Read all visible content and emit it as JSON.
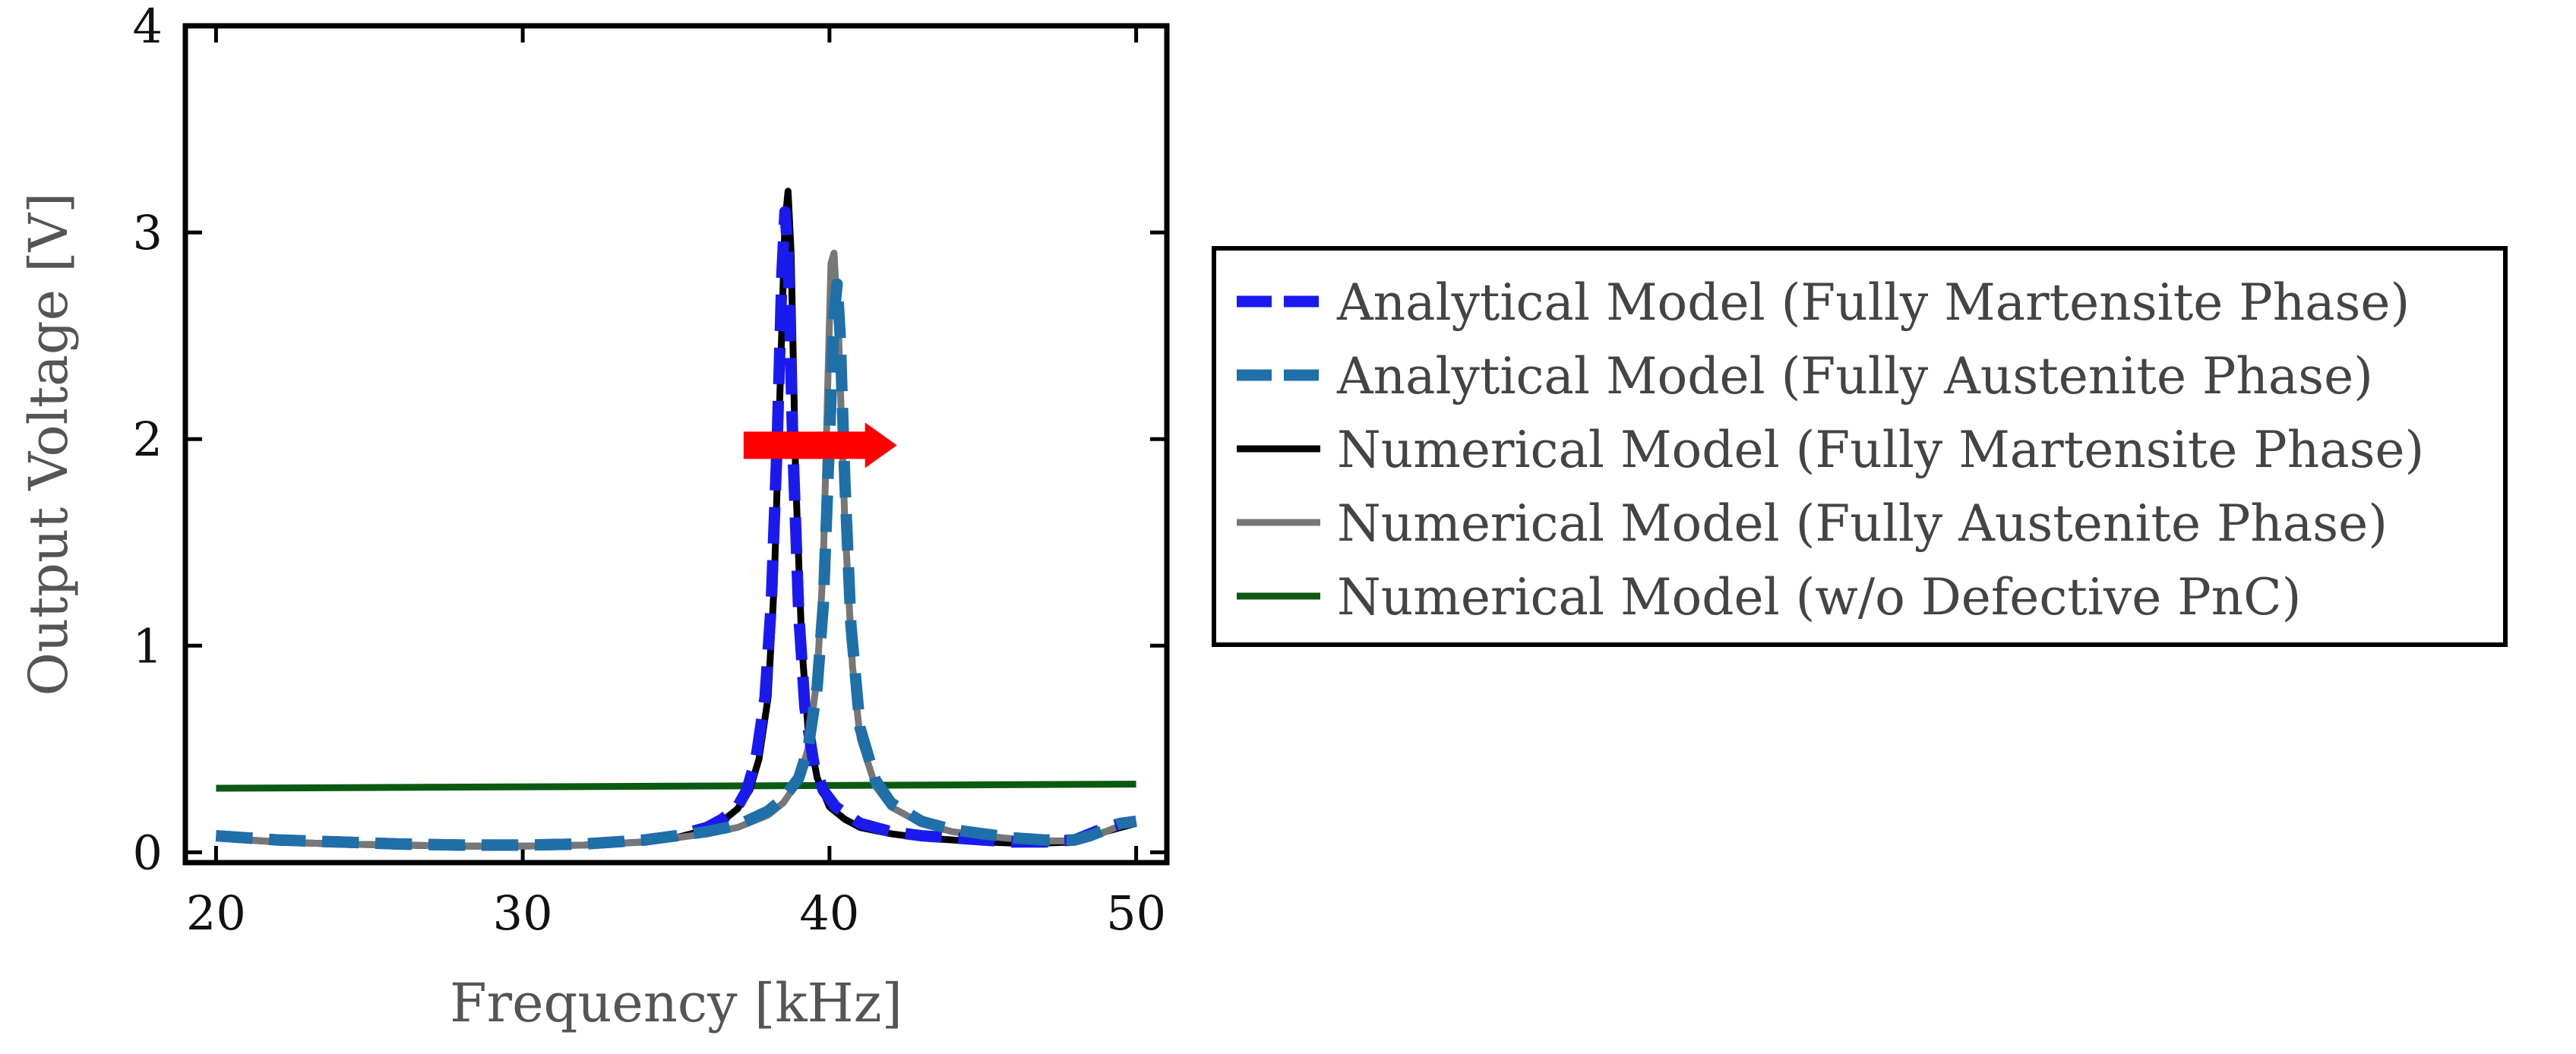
{
  "chart_data": {
    "type": "line",
    "title": "",
    "xlabel": "Frequency [kHz]",
    "ylabel": "Output Voltage [V]",
    "xlim": [
      19,
      51
    ],
    "ylim": [
      -0.05,
      4
    ],
    "xticks": [
      20,
      30,
      40,
      50
    ],
    "yticks": [
      0,
      1,
      2,
      3,
      4
    ],
    "x_tick_labels": [
      "20",
      "30",
      "40",
      "50"
    ],
    "y_tick_labels": [
      "0",
      "1",
      "2",
      "3",
      "4"
    ],
    "grid": false,
    "legend_position": "right",
    "annotations": [
      {
        "type": "arrow",
        "color": "#ff0000",
        "direction": "right",
        "x_from": 37.2,
        "x_to": 42.2,
        "y": 1.97
      }
    ],
    "series": [
      {
        "name": "Analytical Model (Fully Martensite Phase)",
        "color": "#1a1aee",
        "style": "dashed",
        "x": [
          20,
          22,
          24,
          26,
          28,
          30,
          32,
          34,
          35,
          36,
          36.5,
          37,
          37.3,
          37.6,
          37.9,
          38.1,
          38.3,
          38.45,
          38.55,
          38.65,
          38.8,
          39,
          39.2,
          39.5,
          39.8,
          40.2,
          41,
          42,
          43,
          44,
          45,
          46,
          47,
          48,
          48.5,
          49,
          49.5,
          50
        ],
        "values": [
          0.08,
          0.06,
          0.05,
          0.04,
          0.035,
          0.035,
          0.04,
          0.06,
          0.08,
          0.12,
          0.16,
          0.22,
          0.3,
          0.45,
          0.75,
          1.2,
          2.0,
          2.8,
          3.1,
          2.9,
          2.0,
          1.15,
          0.7,
          0.42,
          0.3,
          0.22,
          0.14,
          0.1,
          0.08,
          0.07,
          0.06,
          0.05,
          0.05,
          0.06,
          0.09,
          0.12,
          0.14,
          0.15
        ]
      },
      {
        "name": "Analytical Model (Fully Austenite Phase)",
        "color": "#1f6fa8",
        "style": "dashed",
        "x": [
          20,
          22,
          24,
          26,
          28,
          30,
          32,
          34,
          36,
          37,
          38,
          38.5,
          39,
          39.3,
          39.6,
          39.8,
          40.0,
          40.15,
          40.25,
          40.35,
          40.5,
          40.7,
          41,
          41.5,
          42,
          43,
          44,
          45,
          46,
          47,
          48,
          48.5,
          49,
          49.5,
          50
        ],
        "values": [
          0.08,
          0.06,
          0.05,
          0.04,
          0.035,
          0.035,
          0.04,
          0.06,
          0.1,
          0.13,
          0.2,
          0.26,
          0.36,
          0.5,
          0.8,
          1.2,
          2.0,
          2.6,
          2.75,
          2.5,
          1.8,
          1.1,
          0.6,
          0.35,
          0.24,
          0.15,
          0.11,
          0.09,
          0.07,
          0.06,
          0.06,
          0.08,
          0.11,
          0.14,
          0.15
        ]
      },
      {
        "name": "Numerical Model (Fully Martensite Phase)",
        "color": "#000000",
        "style": "solid",
        "x": [
          20,
          22,
          24,
          26,
          28,
          30,
          32,
          34,
          35,
          36,
          36.5,
          37,
          37.4,
          37.7,
          38,
          38.2,
          38.4,
          38.55,
          38.65,
          38.75,
          38.9,
          39.1,
          39.3,
          39.6,
          40,
          40.5,
          41,
          42,
          43,
          44,
          45,
          46,
          47,
          48,
          48.5,
          49,
          49.5,
          50
        ],
        "values": [
          0.07,
          0.05,
          0.04,
          0.035,
          0.03,
          0.03,
          0.035,
          0.05,
          0.07,
          0.11,
          0.15,
          0.21,
          0.3,
          0.45,
          0.75,
          1.3,
          2.3,
          3.05,
          3.2,
          2.9,
          1.8,
          1.0,
          0.6,
          0.36,
          0.22,
          0.16,
          0.12,
          0.09,
          0.07,
          0.06,
          0.05,
          0.045,
          0.045,
          0.05,
          0.07,
          0.1,
          0.12,
          0.14
        ]
      },
      {
        "name": "Numerical Model (Fully Austenite Phase)",
        "color": "#777777",
        "style": "solid",
        "x": [
          20,
          22,
          24,
          26,
          28,
          30,
          32,
          34,
          36,
          37,
          38,
          38.5,
          39,
          39.3,
          39.6,
          39.8,
          39.95,
          40.05,
          40.15,
          40.3,
          40.5,
          40.75,
          41,
          41.5,
          42,
          43,
          44,
          45,
          46,
          47,
          48,
          48.5,
          49,
          49.5,
          50
        ],
        "values": [
          0.07,
          0.05,
          0.04,
          0.035,
          0.03,
          0.03,
          0.035,
          0.05,
          0.09,
          0.12,
          0.18,
          0.24,
          0.35,
          0.5,
          0.85,
          1.4,
          2.3,
          2.85,
          2.9,
          2.5,
          1.6,
          0.9,
          0.55,
          0.32,
          0.22,
          0.14,
          0.1,
          0.08,
          0.065,
          0.055,
          0.055,
          0.07,
          0.1,
          0.13,
          0.15
        ]
      },
      {
        "name": "Numerical Model (w/o Defective PnC)",
        "color": "#0b5a12",
        "style": "solid",
        "x": [
          20,
          50
        ],
        "values": [
          0.31,
          0.33
        ]
      }
    ]
  }
}
